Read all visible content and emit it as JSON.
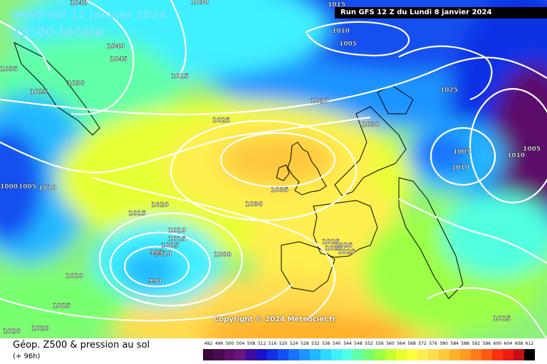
{
  "header": {
    "date": "Vendredi 12 janvier 2024",
    "time": "13:00 locale",
    "run": "Run GFS 12 Z du Lundi 8 janvier 2024"
  },
  "copyright": "Copyright © 2024 Meteociel.fr",
  "legend": {
    "title": "Géop. Z500 & pression au sol",
    "subtitle": "(+ 96h)",
    "scale_values": [
      "492",
      "496",
      "500",
      "504",
      "508",
      "512",
      "516",
      "520",
      "524",
      "528",
      "532",
      "536",
      "540",
      "544",
      "548",
      "552",
      "556",
      "560",
      "564",
      "568",
      "572",
      "576",
      "580",
      "584",
      "588",
      "592",
      "596",
      "600",
      "604",
      "608",
      "612"
    ],
    "scale_colors": [
      "#3a0a3a",
      "#4a0c52",
      "#5c106a",
      "#6a1480",
      "#3c0ca0",
      "#1c10c8",
      "#1030e6",
      "#1450f0",
      "#1a72ff",
      "#1e94ff",
      "#22b8ff",
      "#30d8ff",
      "#40f0ff",
      "#50ffe0",
      "#60ffa8",
      "#78ff70",
      "#9cff44",
      "#c4ff30",
      "#e6ff30",
      "#ffff40",
      "#ffee50",
      "#ffdc50",
      "#ffc83c",
      "#ffb02c",
      "#ff9a22",
      "#ff7a1a",
      "#ff5a14",
      "#ff3010",
      "#ec1c10",
      "#c81014",
      "#000000"
    ]
  },
  "isobar_labels": [
    "1040",
    "1030",
    "1015",
    "1010",
    "1005",
    "1040",
    "1045",
    "1035",
    "1030",
    "1015",
    "1025",
    "1025",
    "1020",
    "1025",
    "1030",
    "1035",
    "1030",
    "1020",
    "1015",
    "1025",
    "1025",
    "1000",
    "1005",
    "1010",
    "1010",
    "1015",
    "1005",
    "1010",
    "995",
    "990",
    "1000",
    "1005",
    "1010",
    "1025",
    "1025",
    "1010",
    "1015",
    "1015",
    "1020",
    "1020",
    "1005",
    "1010"
  ]
}
